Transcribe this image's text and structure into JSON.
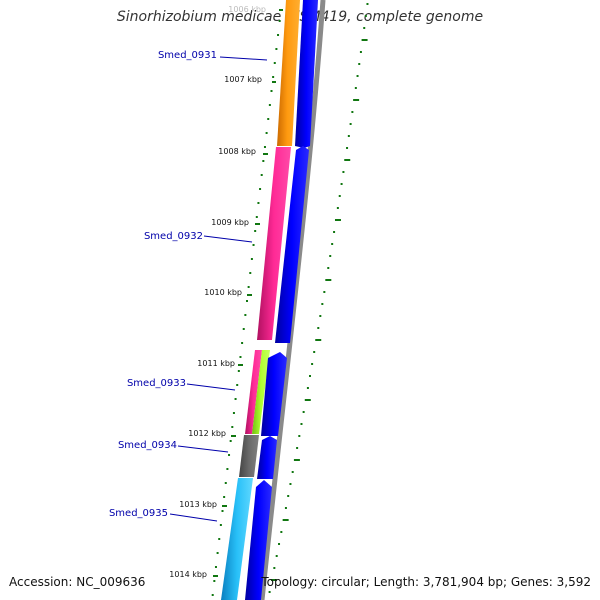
{
  "title": "Sinorhizobium medicae WSM419, complete genome",
  "accession": "Accession: NC_009636",
  "summary": "Topology: circular; Length: 3,781,904 bp; Genes: 3,592",
  "kbp_labels": [
    "1006 kbp",
    "1007 kbp",
    "1008 kbp",
    "1009 kbp",
    "1010 kbp",
    "1011 kbp",
    "1012 kbp",
    "1013 kbp",
    "1014 kbp"
  ],
  "gene_labels": [
    "Smed_0931",
    "Smed_0932",
    "Smed_0933",
    "Smed_0934",
    "Smed_0935"
  ],
  "colors": {
    "orange": "#ff9900",
    "pink": "#ff2a96",
    "green": "#a8ff2a",
    "gray": "#666666",
    "cyan": "#20b8f0",
    "blue": "#0000ff",
    "tick_green": "#117711",
    "label_blue": "#0000aa"
  }
}
